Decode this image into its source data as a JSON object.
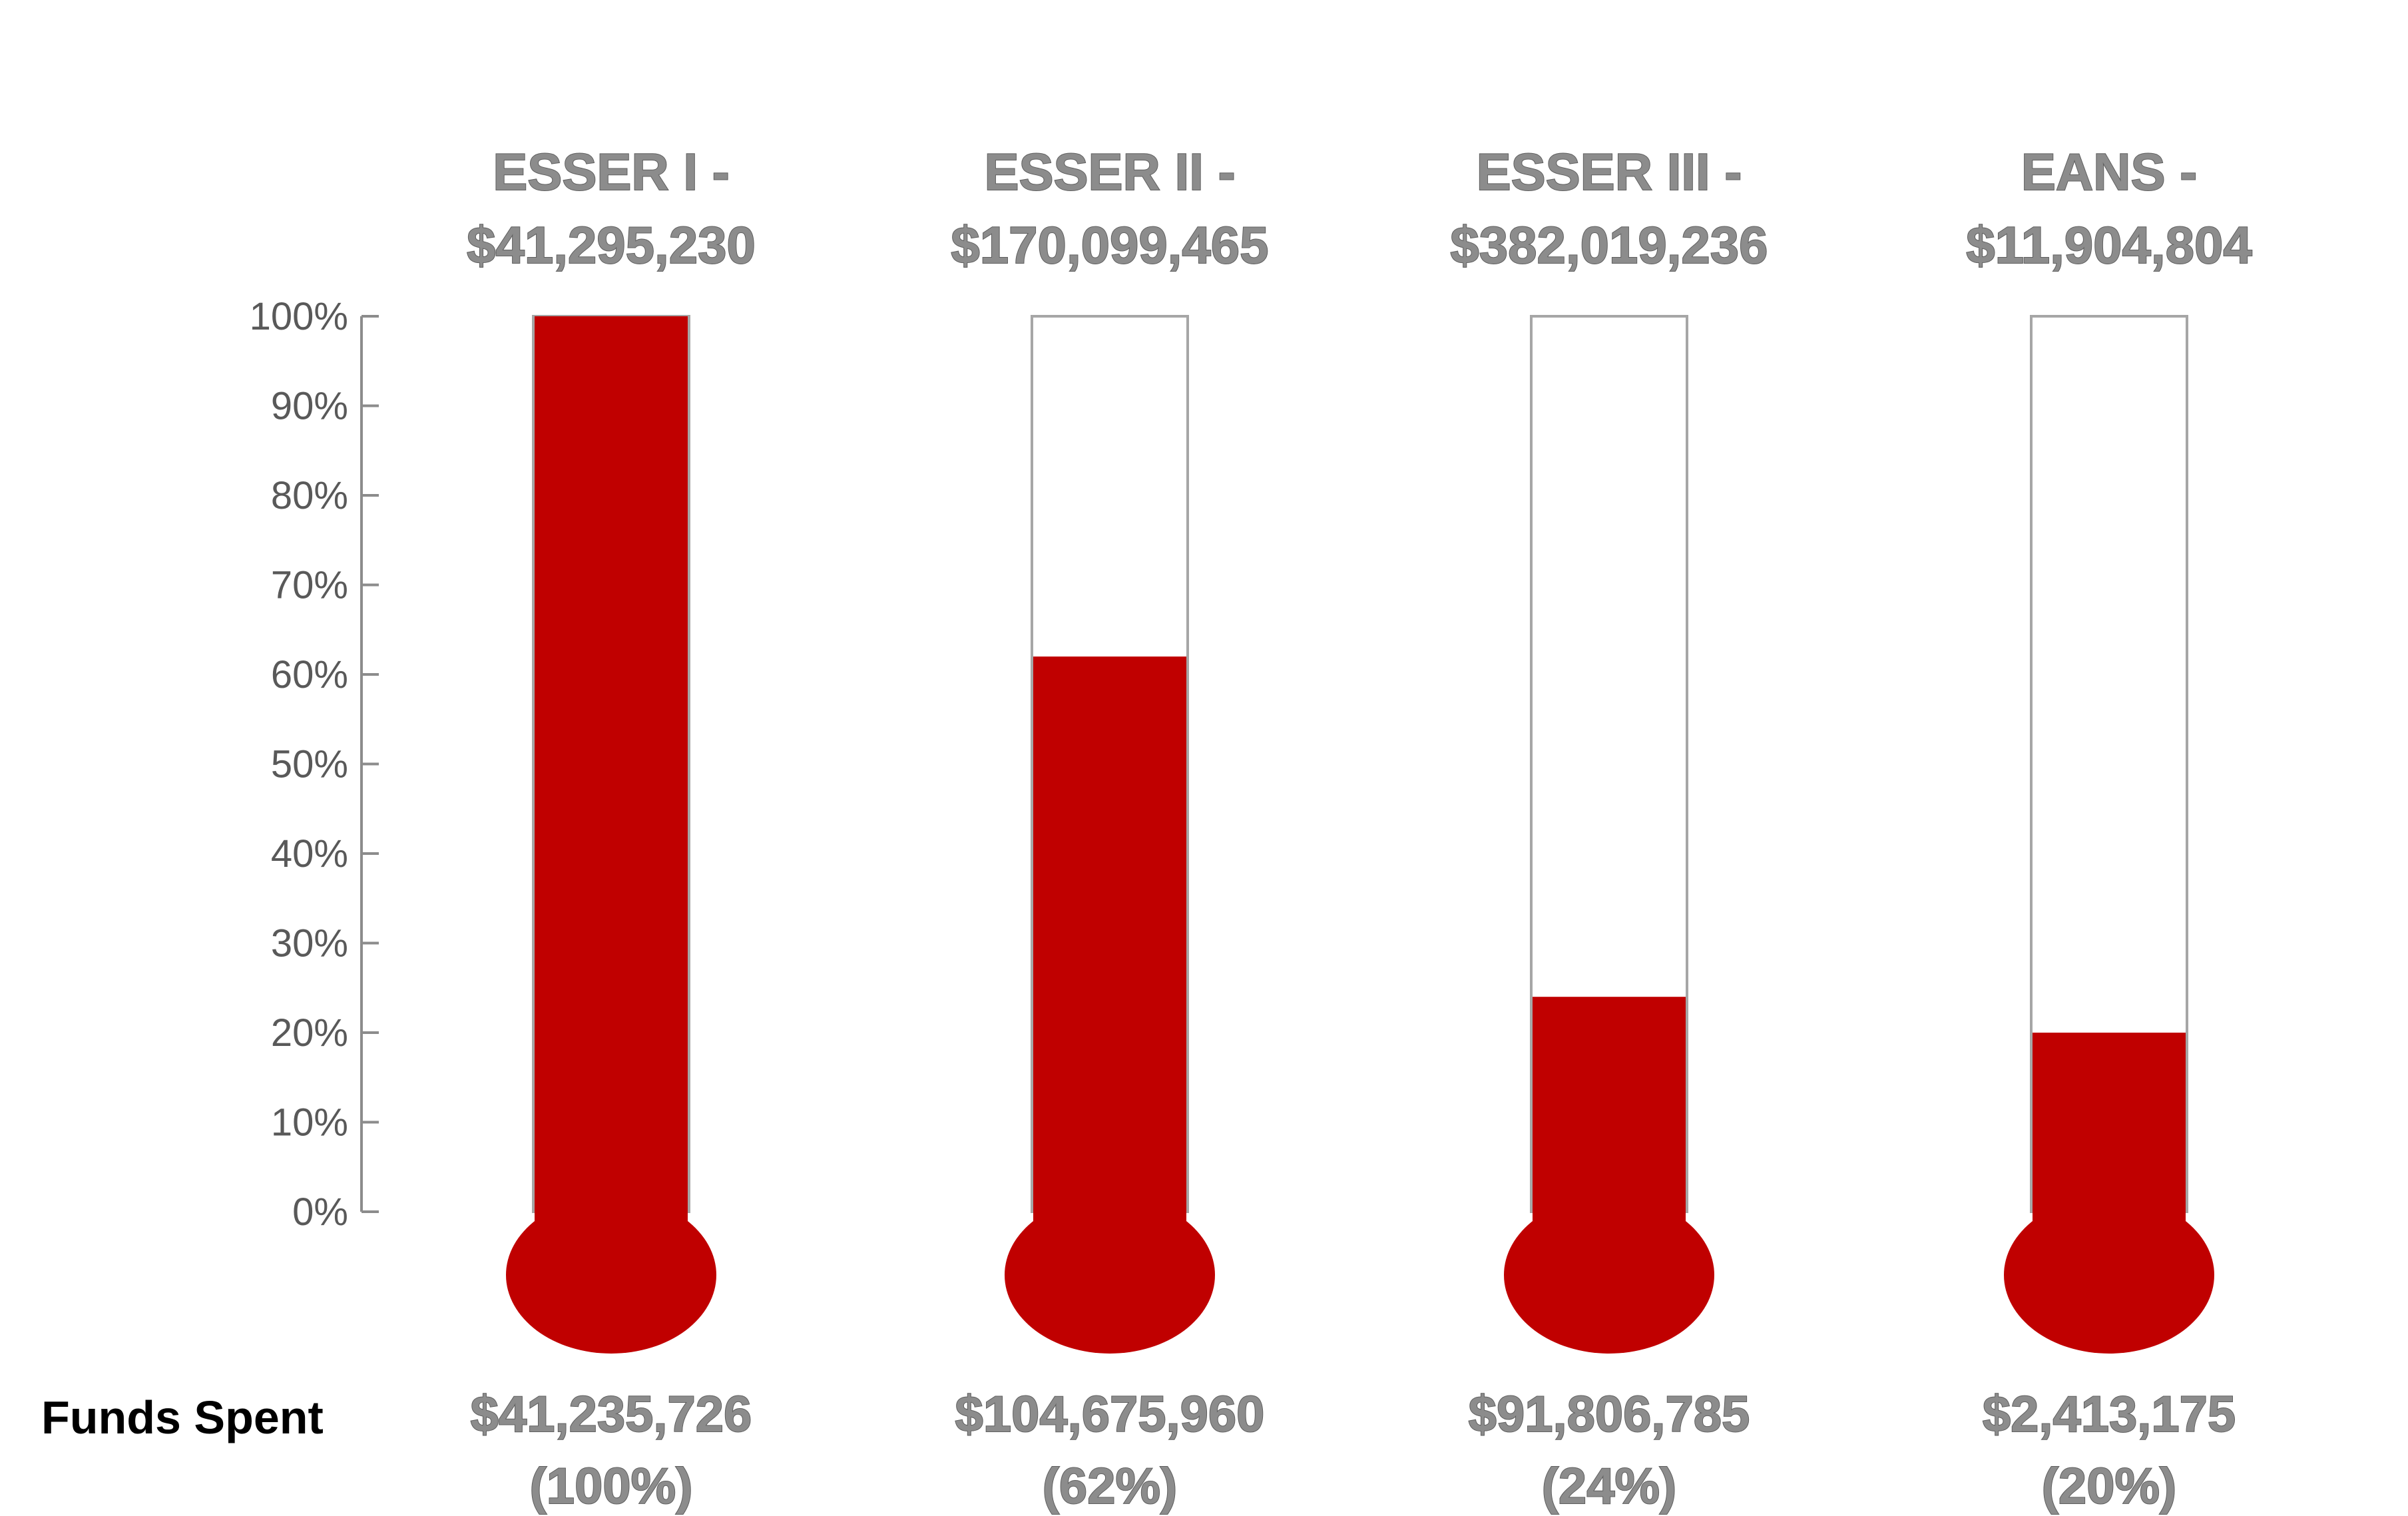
{
  "chart_data": {
    "type": "bar",
    "style": "thermometer",
    "categories": [
      "ESSER I",
      "ESSER II",
      "ESSER III",
      "EANS"
    ],
    "category_headers": [
      [
        "ESSER I -",
        "$41,295,230"
      ],
      [
        "ESSER II -",
        "$170,099,465"
      ],
      [
        "ESSER III -",
        "$382,019,236"
      ],
      [
        "EANS -",
        "$11,904,804"
      ]
    ],
    "values": [
      100,
      62,
      24,
      20
    ],
    "value_labels": [
      [
        "$41,235,726",
        "(100%)"
      ],
      [
        "$104,675,960",
        "(62%)"
      ],
      [
        "$91,806,785",
        "(24%)"
      ],
      [
        "$2,413,175",
        "(20%)"
      ]
    ],
    "row_label": "Funds Spent",
    "yticks": [
      "0%",
      "10%",
      "20%",
      "30%",
      "40%",
      "50%",
      "60%",
      "70%",
      "80%",
      "90%",
      "100%"
    ],
    "ylim": [
      0,
      100
    ],
    "grid": false,
    "colors": {
      "fill": "#c00000",
      "tube_border": "#a6a6a6",
      "axis": "#8c8c8c"
    }
  }
}
